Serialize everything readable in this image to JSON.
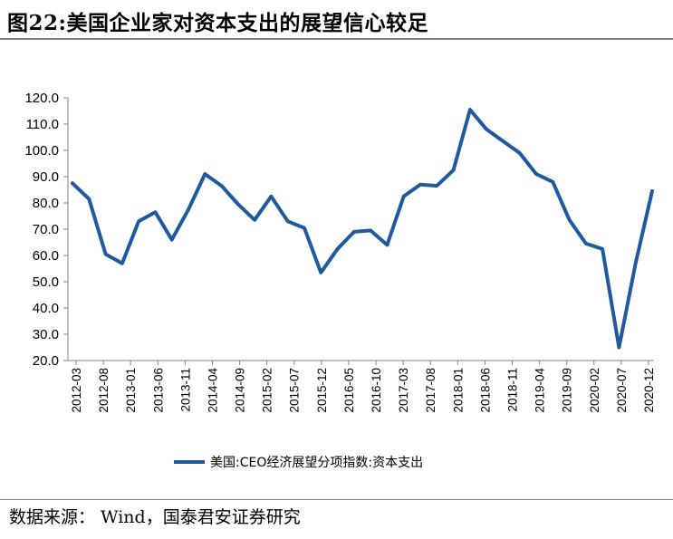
{
  "title": "图22:美国企业家对资本支出的展望信心较足",
  "source": "数据来源： Wind，国泰君安证券研究",
  "colors": {
    "line": "#1f5aa0",
    "axis": "#868686"
  },
  "chart_data": {
    "type": "line",
    "title": "",
    "xlabel": "",
    "ylabel": "",
    "ylim": [
      20,
      120
    ],
    "yticks": [
      "120.0",
      "110.0",
      "100.0",
      "90.0",
      "80.0",
      "70.0",
      "60.0",
      "50.0",
      "40.0",
      "30.0",
      "20.0"
    ],
    "grid": false,
    "legend_position": "bottom-center",
    "x_tick_labels": [
      "2012-03",
      "2012-08",
      "2013-01",
      "2013-06",
      "2013-11",
      "2014-04",
      "2014-09",
      "2015-02",
      "2015-07",
      "2015-12",
      "2016-05",
      "2016-10",
      "2017-03",
      "2017-08",
      "2018-01",
      "2018-06",
      "2018-11",
      "2019-04",
      "2019-09",
      "2020-02",
      "2020-07",
      "2020-12"
    ],
    "x": [
      "2012-03",
      "2012-06",
      "2012-09",
      "2012-12",
      "2013-03",
      "2013-06",
      "2013-09",
      "2013-12",
      "2014-03",
      "2014-06",
      "2014-09",
      "2014-12",
      "2015-03",
      "2015-06",
      "2015-09",
      "2015-12",
      "2016-03",
      "2016-06",
      "2016-09",
      "2016-12",
      "2017-03",
      "2017-06",
      "2017-09",
      "2017-12",
      "2018-03",
      "2018-06",
      "2018-09",
      "2018-12",
      "2019-03",
      "2019-06",
      "2019-09",
      "2019-12",
      "2020-03",
      "2020-06",
      "2020-09",
      "2020-12"
    ],
    "series": [
      {
        "name": "美国:CEO经济展望分项指数:资本支出",
        "values": [
          87.5,
          81.5,
          60.5,
          57,
          73,
          76.5,
          66,
          77.5,
          91,
          86.5,
          79.5,
          73.5,
          82.5,
          73,
          70.5,
          53.5,
          62.5,
          69,
          69.5,
          64,
          82.5,
          87,
          86.5,
          92.5,
          115.5,
          108,
          103.5,
          99,
          91,
          88,
          73.5,
          64.5,
          62.5,
          25,
          57,
          84.5
        ]
      }
    ]
  }
}
